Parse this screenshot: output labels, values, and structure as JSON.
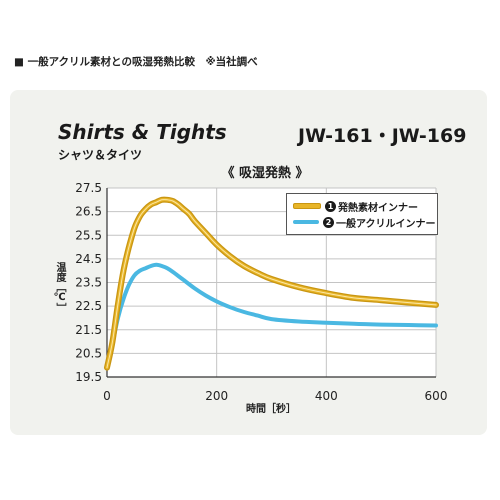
{
  "heading": "■ 一般アクリル素材との吸湿発熱比較　※当社調べ",
  "product": {
    "title": "Shirts & Tights",
    "subtitle": "シャツ＆タイツ",
    "model": "JW-161・JW-169"
  },
  "colors": {
    "gold": "#e8b528",
    "gold_dark": "#c99612",
    "blue": "#4ab8e2",
    "grid": "#c4c4c4",
    "card_bg": "#f1f2ee"
  },
  "chart_data": {
    "type": "line",
    "title": "《 吸湿発熱 》",
    "xlabel": "時間［秒］",
    "ylabel": "温度［℃］",
    "xlim": [
      0,
      600
    ],
    "ylim": [
      19.5,
      27.5
    ],
    "xticks": [
      "0",
      "200",
      "400",
      "600"
    ],
    "yticks": [
      "27.5",
      "26.5",
      "25.5",
      "24.5",
      "23.5",
      "22.5",
      "21.5",
      "20.5",
      "19.5"
    ],
    "grid": true,
    "legend_position": "top-right",
    "series": [
      {
        "name": "発熱素材インナー",
        "number": "1",
        "color": "#e8b528",
        "x": [
          0,
          10,
          20,
          30,
          40,
          50,
          60,
          70,
          80,
          90,
          100,
          110,
          120,
          130,
          140,
          150,
          160,
          180,
          200,
          225,
          250,
          275,
          300,
          350,
          400,
          450,
          500,
          550,
          600
        ],
        "y": [
          19.9,
          21.0,
          22.6,
          24.0,
          25.0,
          25.8,
          26.3,
          26.6,
          26.8,
          26.9,
          27.0,
          27.0,
          26.95,
          26.8,
          26.6,
          26.4,
          26.1,
          25.6,
          25.1,
          24.6,
          24.2,
          23.9,
          23.65,
          23.3,
          23.05,
          22.85,
          22.75,
          22.65,
          22.55
        ]
      },
      {
        "name": "一般アクリルインナー",
        "number": "2",
        "color": "#4ab8e2",
        "x": [
          0,
          10,
          20,
          30,
          40,
          50,
          60,
          70,
          80,
          90,
          100,
          110,
          120,
          140,
          160,
          180,
          200,
          225,
          250,
          275,
          300,
          350,
          400,
          450,
          500,
          550,
          600
        ],
        "y": [
          19.9,
          20.9,
          22.0,
          22.8,
          23.4,
          23.8,
          24.0,
          24.1,
          24.2,
          24.25,
          24.2,
          24.1,
          23.95,
          23.6,
          23.25,
          22.95,
          22.7,
          22.45,
          22.25,
          22.1,
          21.95,
          21.85,
          21.8,
          21.75,
          21.72,
          21.7,
          21.68
        ]
      }
    ]
  }
}
